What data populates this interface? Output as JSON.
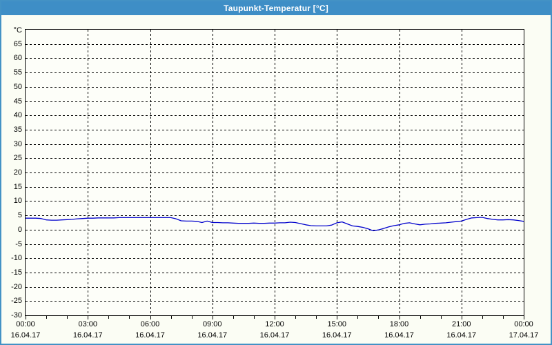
{
  "window": {
    "title": "Taupunkt-Temperatur [°C]"
  },
  "colors": {
    "titlebar": "#3E8EC6",
    "window_border": "#4392C5",
    "background": "#FBFDF4",
    "plot_background": "#FDFEF9",
    "grid": "#000000",
    "line": "#0000CC",
    "text": "#000000",
    "title_text": "#FFFFFF"
  },
  "chart_data": {
    "type": "line",
    "title": "Taupunkt-Temperatur [°C]",
    "ylabel": "°C",
    "xlabel": "",
    "ylim": [
      -30,
      70
    ],
    "y_tick_step": 5,
    "y_tick_labels": [
      65,
      60,
      55,
      50,
      45,
      40,
      35,
      30,
      25,
      20,
      15,
      10,
      5,
      0,
      -5,
      -10,
      -15,
      -20,
      -25,
      -30
    ],
    "grid": "dashed",
    "legend": "none",
    "x_range_hours": 24,
    "x_major_tick_hours": 3,
    "x_minor_tick_hours": 1,
    "x_ticks": [
      {
        "time": "00:00",
        "date": "16.04.17"
      },
      {
        "time": "03:00",
        "date": "16.04.17"
      },
      {
        "time": "06:00",
        "date": "16.04.17"
      },
      {
        "time": "09:00",
        "date": "16.04.17"
      },
      {
        "time": "12:00",
        "date": "16.04.17"
      },
      {
        "time": "15:00",
        "date": "16.04.17"
      },
      {
        "time": "18:00",
        "date": "16.04.17"
      },
      {
        "time": "21:00",
        "date": "16.04.17"
      },
      {
        "time": "00:00",
        "date": "17.04.17"
      }
    ],
    "series": [
      {
        "name": "Taupunkt-Temperatur",
        "color": "#0000CC",
        "start": "00:00",
        "interval_minutes": 15,
        "values": [
          4.0,
          4.0,
          4.0,
          3.9,
          3.4,
          3.3,
          3.3,
          3.4,
          3.5,
          3.6,
          3.8,
          3.9,
          4.0,
          4.0,
          4.1,
          4.1,
          4.1,
          4.1,
          4.2,
          4.2,
          4.2,
          4.2,
          4.2,
          4.2,
          4.2,
          4.2,
          4.2,
          4.2,
          4.2,
          3.8,
          3.1,
          3.0,
          3.0,
          2.9,
          2.5,
          3.0,
          2.5,
          2.5,
          2.4,
          2.4,
          2.3,
          2.2,
          2.2,
          2.2,
          2.3,
          2.2,
          2.2,
          2.3,
          2.3,
          2.4,
          2.4,
          2.6,
          2.5,
          2.1,
          1.7,
          1.4,
          1.3,
          1.3,
          1.3,
          1.6,
          2.4,
          2.7,
          2.0,
          1.3,
          1.1,
          0.8,
          0.3,
          -0.4,
          -0.1,
          0.4,
          1.0,
          1.4,
          1.7,
          2.2,
          2.4,
          2.0,
          1.7,
          1.9,
          2.0,
          2.2,
          2.3,
          2.4,
          2.6,
          2.8,
          3.0,
          3.6,
          4.1,
          4.2,
          4.3,
          3.9,
          3.6,
          3.4,
          3.4,
          3.5,
          3.4,
          3.2,
          2.9
        ]
      }
    ]
  }
}
